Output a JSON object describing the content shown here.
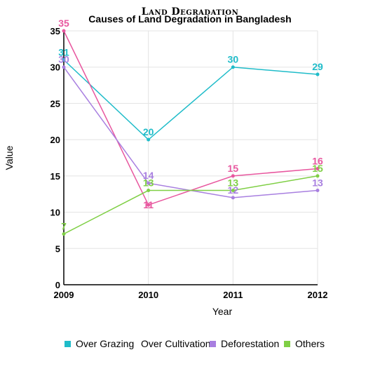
{
  "chart_data": {
    "type": "line",
    "supertitle": "Land Degradation",
    "title": "Causes of Land Degradation in Bangladesh",
    "xlabel": "Year",
    "ylabel": "Value",
    "x": [
      "2009",
      "2010",
      "2011",
      "2012"
    ],
    "ylim": [
      0,
      35
    ],
    "yticks": [
      "0",
      "5",
      "10",
      "15",
      "20",
      "25",
      "30",
      "35"
    ],
    "grid": true,
    "legend_position": "bottom",
    "series": [
      {
        "name": "Over Grazing",
        "color": "#1fbcc9",
        "values": [
          31,
          20,
          30,
          29
        ],
        "labels": [
          "31",
          "20",
          "30",
          "29"
        ]
      },
      {
        "name": "Over Cultivation",
        "color": "#e8579f",
        "values": [
          35,
          11,
          15,
          16
        ],
        "labels": [
          "35",
          "11",
          "15",
          "16"
        ]
      },
      {
        "name": "Deforestation",
        "color": "#a87fe0",
        "values": [
          30,
          14,
          12,
          13
        ],
        "labels": [
          "30",
          "14",
          "12",
          "13"
        ]
      },
      {
        "name": "Others",
        "color": "#7fcf45",
        "values": [
          7,
          13,
          13,
          15
        ],
        "labels": [
          "7",
          "13",
          "13",
          "15"
        ]
      }
    ]
  }
}
